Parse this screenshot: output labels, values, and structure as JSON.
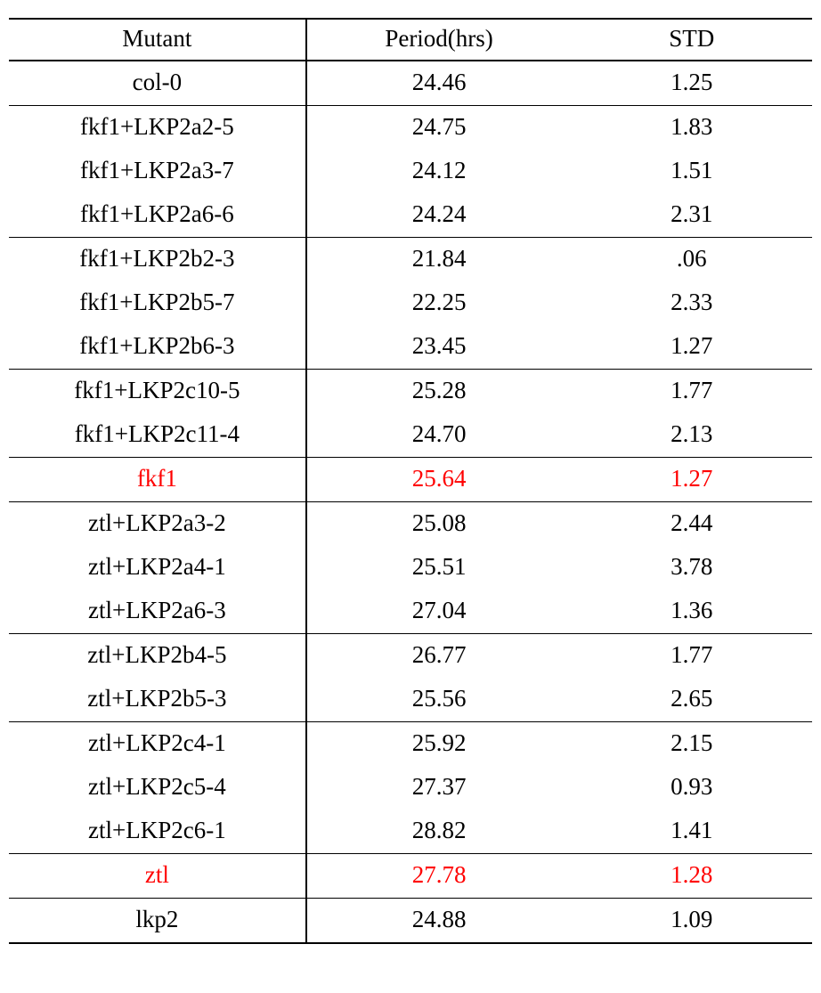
{
  "table": {
    "type": "table",
    "background_color": "#ffffff",
    "text_color": "#000000",
    "highlight_color": "#ff0000",
    "rule_color": "#000000",
    "font_family": "Palatino Linotype, Book Antiqua, Palatino, Georgia, serif",
    "cell_fontsize": 27,
    "column_widths_pct": [
      37,
      33,
      30
    ],
    "columns": [
      "Mutant",
      "Period(hrs)",
      "STD"
    ],
    "groups": [
      {
        "rows": [
          {
            "mutant": "col-0",
            "period": "24.46",
            "std": "1.25",
            "highlight": false
          }
        ]
      },
      {
        "rows": [
          {
            "mutant": "fkf1+LKP2a2-5",
            "period": "24.75",
            "std": "1.83",
            "highlight": false
          },
          {
            "mutant": "fkf1+LKP2a3-7",
            "period": "24.12",
            "std": "1.51",
            "highlight": false
          },
          {
            "mutant": "fkf1+LKP2a6-6",
            "period": "24.24",
            "std": "2.31",
            "highlight": false
          }
        ]
      },
      {
        "rows": [
          {
            "mutant": "fkf1+LKP2b2-3",
            "period": "21.84",
            "std": ".06",
            "highlight": false
          },
          {
            "mutant": "fkf1+LKP2b5-7",
            "period": "22.25",
            "std": "2.33",
            "highlight": false
          },
          {
            "mutant": "fkf1+LKP2b6-3",
            "period": "23.45",
            "std": "1.27",
            "highlight": false
          }
        ]
      },
      {
        "rows": [
          {
            "mutant": "fkf1+LKP2c10-5",
            "period": "25.28",
            "std": "1.77",
            "highlight": false
          },
          {
            "mutant": "fkf1+LKP2c11-4",
            "period": "24.70",
            "std": "2.13",
            "highlight": false
          }
        ]
      },
      {
        "rows": [
          {
            "mutant": "fkf1",
            "period": "25.64",
            "std": "1.27",
            "highlight": true
          }
        ]
      },
      {
        "rows": [
          {
            "mutant": "ztl+LKP2a3-2",
            "period": "25.08",
            "std": "2.44",
            "highlight": false
          },
          {
            "mutant": "ztl+LKP2a4-1",
            "period": "25.51",
            "std": "3.78",
            "highlight": false
          },
          {
            "mutant": "ztl+LKP2a6-3",
            "period": "27.04",
            "std": "1.36",
            "highlight": false
          }
        ]
      },
      {
        "rows": [
          {
            "mutant": "ztl+LKP2b4-5",
            "period": "26.77",
            "std": "1.77",
            "highlight": false
          },
          {
            "mutant": "ztl+LKP2b5-3",
            "period": "25.56",
            "std": "2.65",
            "highlight": false
          }
        ]
      },
      {
        "rows": [
          {
            "mutant": "ztl+LKP2c4-1",
            "period": "25.92",
            "std": "2.15",
            "highlight": false
          },
          {
            "mutant": "ztl+LKP2c5-4",
            "period": "27.37",
            "std": "0.93",
            "highlight": false
          },
          {
            "mutant": "ztl+LKP2c6-1",
            "period": "28.82",
            "std": "1.41",
            "highlight": false
          }
        ]
      },
      {
        "rows": [
          {
            "mutant": "ztl",
            "period": "27.78",
            "std": "1.28",
            "highlight": true
          }
        ]
      },
      {
        "rows": [
          {
            "mutant": "lkp2",
            "period": "24.88",
            "std": "1.09",
            "highlight": false
          }
        ]
      }
    ]
  }
}
